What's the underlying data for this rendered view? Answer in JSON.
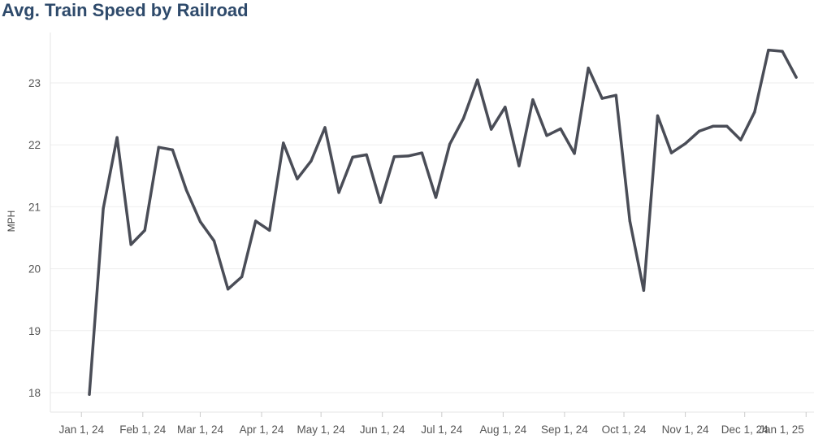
{
  "chart_data": {
    "type": "line",
    "title": "Avg. Train Speed by Railroad",
    "xlabel": "",
    "ylabel": "MPH",
    "xlim": [
      "2023-12-20",
      "2025-01-05"
    ],
    "ylim": [
      17.7,
      23.9
    ],
    "grid": "horizontal",
    "line_color": "#4a4d57",
    "x_ticks": [
      "Jan 1, 24",
      "Feb 1, 24",
      "Mar 1, 24",
      "Apr 1, 24",
      "May 1, 24",
      "Jun 1, 24",
      "Jul 1, 24",
      "Aug 1, 24",
      "Sep 1, 24",
      "Oct 1, 24",
      "Nov 1, 24",
      "Dec 1, 24",
      "Jan 1, 25"
    ],
    "x_tick_dates": [
      "2024-01-01",
      "2024-02-01",
      "2024-03-01",
      "2024-04-01",
      "2024-05-01",
      "2024-06-01",
      "2024-07-01",
      "2024-08-01",
      "2024-09-01",
      "2024-10-01",
      "2024-11-01",
      "2024-12-01",
      "2025-01-01"
    ],
    "y_ticks": [
      18,
      19,
      20,
      21,
      22,
      23
    ],
    "series": [
      {
        "name": "",
        "x": [
          "2024-01-05",
          "2024-01-12",
          "2024-01-19",
          "2024-01-26",
          "2024-02-02",
          "2024-02-09",
          "2024-02-16",
          "2024-02-23",
          "2024-03-01",
          "2024-03-08",
          "2024-03-15",
          "2024-03-22",
          "2024-03-29",
          "2024-04-05",
          "2024-04-12",
          "2024-04-19",
          "2024-04-26",
          "2024-05-03",
          "2024-05-10",
          "2024-05-17",
          "2024-05-24",
          "2024-05-31",
          "2024-06-07",
          "2024-06-14",
          "2024-06-21",
          "2024-06-28",
          "2024-07-05",
          "2024-07-12",
          "2024-07-19",
          "2024-07-26",
          "2024-08-02",
          "2024-08-09",
          "2024-08-16",
          "2024-08-23",
          "2024-08-30",
          "2024-09-06",
          "2024-09-13",
          "2024-09-20",
          "2024-09-27",
          "2024-10-04",
          "2024-10-11",
          "2024-10-18",
          "2024-10-25",
          "2024-11-01",
          "2024-11-08",
          "2024-11-15",
          "2024-11-22",
          "2024-11-29",
          "2024-12-06",
          "2024-12-13",
          "2024-12-20",
          "2024-12-27"
        ],
        "y": [
          17.97,
          20.97,
          22.12,
          20.39,
          20.62,
          21.96,
          21.92,
          21.27,
          20.76,
          20.45,
          19.67,
          19.87,
          20.77,
          20.62,
          22.03,
          21.45,
          21.74,
          22.28,
          21.23,
          21.8,
          21.84,
          21.07,
          21.81,
          21.82,
          21.87,
          21.15,
          22.01,
          22.43,
          23.05,
          22.25,
          22.61,
          21.66,
          22.73,
          22.15,
          22.26,
          21.86,
          23.24,
          22.75,
          22.8,
          20.77,
          19.65,
          22.47,
          21.87,
          22.02,
          22.22,
          22.3,
          22.3,
          22.08,
          22.53,
          23.53,
          23.51,
          23.09
        ]
      }
    ]
  }
}
